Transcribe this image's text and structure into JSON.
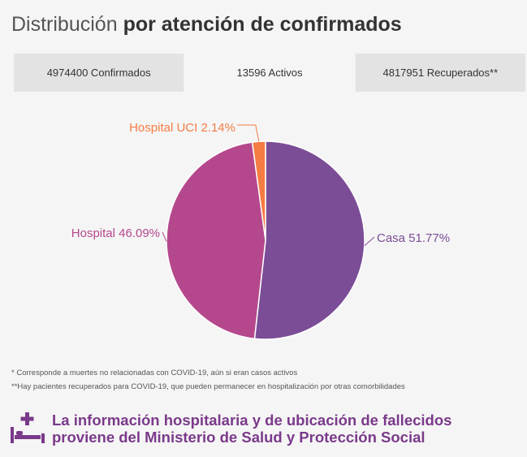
{
  "header": {
    "title_light": "Distribución",
    "title_bold": "por atención de confirmados"
  },
  "tabs": [
    {
      "label": "4974400 Confirmados",
      "active": false
    },
    {
      "label": "13596 Activos",
      "active": true
    },
    {
      "label": "4817951 Recuperados**",
      "active": false
    }
  ],
  "chart_data": {
    "type": "pie",
    "slices": [
      {
        "label": "Casa 51.77%",
        "name": "Casa",
        "value": 51.77,
        "color": "#7b4d96"
      },
      {
        "label": "Hospital 46.09%",
        "name": "Hospital",
        "value": 46.09,
        "color": "#b5488d"
      },
      {
        "label": "Hospital UCI 2.14%",
        "name": "Hospital UCI",
        "value": 2.14,
        "color": "#f57c43"
      }
    ]
  },
  "notes": {
    "note1": "* Corresponde a muertes no relacionadas con COVID-19, aún si eran casos activos",
    "note2": "**Hay pacientes recuperados para COVID-19, que pueden permanecer en hospitalización por otras comorbilidades"
  },
  "footer": {
    "line1": "La información hospitalaria y de ubicación de fallecidos",
    "line2": "proviene del Ministerio de Salud y Protección Social",
    "icon": "hospital-bed-icon",
    "color": "#7a3a8a"
  }
}
